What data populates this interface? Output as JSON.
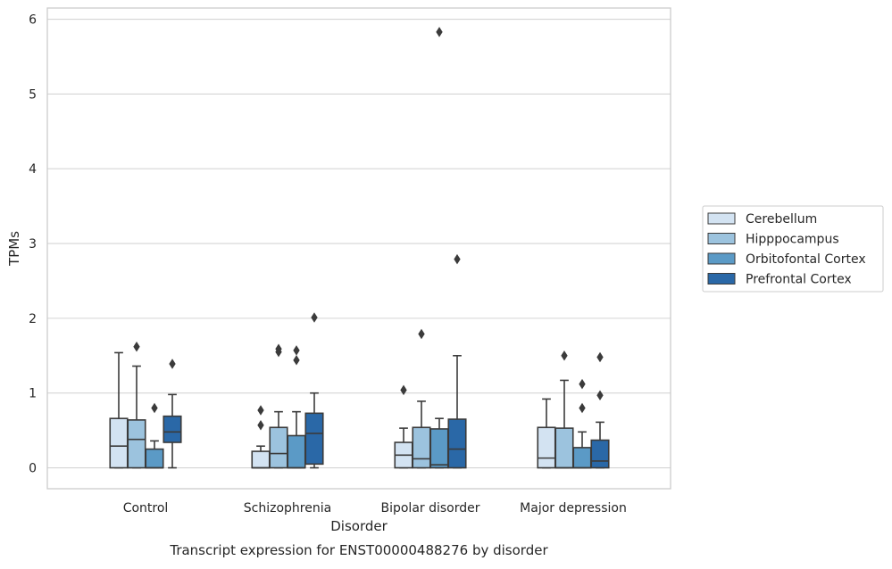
{
  "chart_data": {
    "type": "boxplot",
    "title": "",
    "caption": "Transcript expression for ENST00000488276 by disorder",
    "xlabel": "Disorder",
    "ylabel": "TPMs",
    "ylim": [
      -0.28,
      6.15
    ],
    "yticks": [
      "0",
      "1",
      "2",
      "3",
      "4",
      "5",
      "6"
    ],
    "grid": true,
    "legend_position": "right",
    "categories": [
      "Control",
      "Schizophrenia",
      "Bipolar disorder",
      "Major depression"
    ],
    "series": [
      {
        "name": "Cerebellum",
        "color": "#d3e3f2",
        "boxes": [
          {
            "whislo": 0.0,
            "q1": 0.0,
            "med": 0.29,
            "q3": 0.66,
            "whishi": 1.54,
            "fliers": []
          },
          {
            "whislo": 0.0,
            "q1": 0.0,
            "med": 0.0,
            "q3": 0.22,
            "whishi": 0.29,
            "fliers": [
              0.57,
              0.77
            ]
          },
          {
            "whislo": 0.0,
            "q1": 0.0,
            "med": 0.17,
            "q3": 0.34,
            "whishi": 0.53,
            "fliers": [
              1.04
            ]
          },
          {
            "whislo": 0.0,
            "q1": 0.0,
            "med": 0.13,
            "q3": 0.54,
            "whishi": 0.92,
            "fliers": []
          }
        ]
      },
      {
        "name": "Hipppocampus",
        "color": "#9cc3de",
        "boxes": [
          {
            "whislo": 0.0,
            "q1": 0.0,
            "med": 0.38,
            "q3": 0.64,
            "whishi": 1.36,
            "fliers": [
              1.62
            ]
          },
          {
            "whislo": 0.0,
            "q1": 0.0,
            "med": 0.19,
            "q3": 0.54,
            "whishi": 0.75,
            "fliers": [
              1.55,
              1.59
            ]
          },
          {
            "whislo": 0.0,
            "q1": 0.0,
            "med": 0.12,
            "q3": 0.54,
            "whishi": 0.89,
            "fliers": [
              1.79
            ]
          },
          {
            "whislo": 0.0,
            "q1": 0.0,
            "med": 0.0,
            "q3": 0.53,
            "whishi": 1.17,
            "fliers": [
              1.5
            ]
          }
        ]
      },
      {
        "name": "Orbitofontal Cortex",
        "color": "#5b9ac6",
        "boxes": [
          {
            "whislo": 0.0,
            "q1": 0.0,
            "med": 0.0,
            "q3": 0.25,
            "whishi": 0.36,
            "fliers": [
              0.8
            ]
          },
          {
            "whislo": 0.0,
            "q1": 0.0,
            "med": 0.0,
            "q3": 0.43,
            "whishi": 0.75,
            "fliers": [
              1.44,
              1.57
            ]
          },
          {
            "whislo": 0.0,
            "q1": 0.0,
            "med": 0.04,
            "q3": 0.52,
            "whishi": 0.66,
            "fliers": [
              5.83
            ]
          },
          {
            "whislo": 0.0,
            "q1": 0.0,
            "med": 0.0,
            "q3": 0.27,
            "whishi": 0.48,
            "fliers": [
              0.8,
              1.12
            ]
          }
        ]
      },
      {
        "name": "Prefrontal Cortex",
        "color": "#2a68a7",
        "boxes": [
          {
            "whislo": 0.0,
            "q1": 0.34,
            "med": 0.48,
            "q3": 0.69,
            "whishi": 0.98,
            "fliers": [
              1.39
            ]
          },
          {
            "whislo": 0.0,
            "q1": 0.05,
            "med": 0.46,
            "q3": 0.73,
            "whishi": 1.0,
            "fliers": [
              2.01
            ]
          },
          {
            "whislo": 0.0,
            "q1": 0.0,
            "med": 0.25,
            "q3": 0.65,
            "whishi": 1.5,
            "fliers": [
              2.79
            ]
          },
          {
            "whislo": 0.0,
            "q1": 0.0,
            "med": 0.09,
            "q3": 0.37,
            "whishi": 0.61,
            "fliers": [
              0.97,
              1.48
            ]
          }
        ]
      }
    ]
  }
}
